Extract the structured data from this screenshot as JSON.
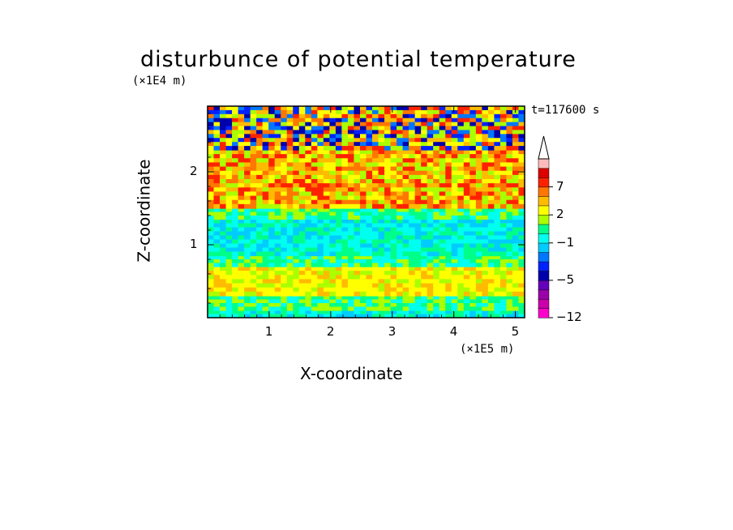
{
  "chart_data": {
    "type": "heatmap",
    "title": "disturbunce of potential temperature",
    "xlabel": "X-coordinate",
    "ylabel": "Z-coordinate",
    "x_scale_label": "(×1E5 m)",
    "z_scale_label": "(×1E4 m)",
    "time_label": "t=117600 s",
    "xlim": [
      0,
      5.15
    ],
    "ylim": [
      0,
      2.9
    ],
    "x_ticks": [
      {
        "value": 1,
        "label": "1"
      },
      {
        "value": 2,
        "label": "2"
      },
      {
        "value": 3,
        "label": "3"
      },
      {
        "value": 4,
        "label": "4"
      },
      {
        "value": 5,
        "label": "5"
      }
    ],
    "y_ticks": [
      {
        "value": 1,
        "label": "1"
      },
      {
        "value": 2,
        "label": "2"
      }
    ],
    "colorbar": {
      "levels": [
        -12,
        -10,
        -8,
        -6,
        -5,
        -4,
        -3,
        -2,
        -1,
        0,
        1,
        2,
        3,
        5,
        7,
        9,
        11
      ],
      "labeled": [
        {
          "value": -12,
          "label": "−12"
        },
        {
          "value": -5,
          "label": "−5"
        },
        {
          "value": -1,
          "label": "−1"
        },
        {
          "value": 2,
          "label": "2"
        },
        {
          "value": 7,
          "label": "7"
        }
      ],
      "colors": [
        "#ff00cc",
        "#cc00aa",
        "#9900aa",
        "#6600bb",
        "#0000aa",
        "#0022ff",
        "#0077ff",
        "#00ccff",
        "#00ffee",
        "#00ff88",
        "#aaff00",
        "#ffff00",
        "#ffbb00",
        "#ff7700",
        "#ff2200",
        "#dd0000",
        "#ffbbbb"
      ],
      "extend": "max"
    },
    "bands": [
      {
        "z_range": [
          0.0,
          0.1
        ],
        "category": "cyan"
      },
      {
        "z_range": [
          0.1,
          0.3
        ],
        "category": "green"
      },
      {
        "z_range": [
          0.3,
          0.7
        ],
        "category": "yellow"
      },
      {
        "z_range": [
          0.7,
          0.85
        ],
        "category": "green"
      },
      {
        "z_range": [
          0.85,
          1.35
        ],
        "category": "cyan"
      },
      {
        "z_range": [
          1.35,
          1.5
        ],
        "category": "green"
      },
      {
        "z_range": [
          1.5,
          2.3
        ],
        "category": "yellow-orange"
      },
      {
        "z_range": [
          2.3,
          2.9
        ],
        "category": "mixed"
      }
    ]
  }
}
